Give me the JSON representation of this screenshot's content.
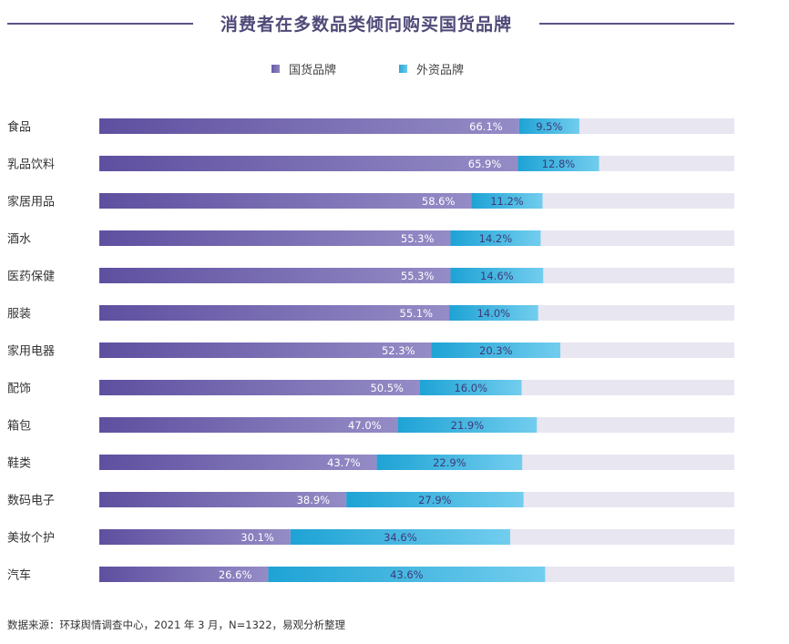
{
  "title": "消费者在多数品类倾向购买国货品牌",
  "legend": {
    "domestic": "国货品牌",
    "foreign": "外资品牌"
  },
  "source": "数据来源：环球舆情调查中心，2021 年 3 月，N=1322，易观分析整理",
  "colors": {
    "domestic_start": "#5f4fa0",
    "domestic_end": "#948cc6",
    "foreign_start": "#1ea3d5",
    "foreign_end": "#72cdee",
    "track": "#e8e6f1",
    "title": "#4f4a78"
  },
  "chart_data": {
    "type": "bar",
    "orientation": "horizontal",
    "stacked": true,
    "categories": [
      "食品",
      "乳品饮料",
      "家居用品",
      "酒水",
      "医药保健",
      "服装",
      "家用电器",
      "配饰",
      "箱包",
      "鞋类",
      "数码电子",
      "美妆个护",
      "汽车"
    ],
    "series": [
      {
        "name": "国货品牌",
        "values": [
          66.1,
          65.9,
          58.6,
          55.3,
          55.3,
          55.1,
          52.3,
          50.5,
          47.0,
          43.7,
          38.9,
          30.1,
          26.6
        ]
      },
      {
        "name": "外资品牌",
        "values": [
          9.5,
          12.8,
          11.2,
          14.2,
          14.6,
          14.0,
          20.3,
          16.0,
          21.9,
          22.9,
          27.9,
          34.6,
          43.6
        ]
      }
    ],
    "labels": {
      "domestic": [
        "66.1%",
        "65.9%",
        "58.6%",
        "55.3%",
        "55.3%",
        "55.1%",
        "52.3%",
        "50.5%",
        "47.0%",
        "43.7%",
        "38.9%",
        "30.1%",
        "26.6%"
      ],
      "foreign": [
        "9.5%",
        "12.8%",
        "11.2%",
        "14.2%",
        "14.6%",
        "14.0%",
        "20.3%",
        "16.0%",
        "21.9%",
        "22.9%",
        "27.9%",
        "34.6%",
        "43.6%"
      ]
    },
    "xlim": [
      0,
      100
    ],
    "legend_position": "top-center",
    "grid": false
  }
}
